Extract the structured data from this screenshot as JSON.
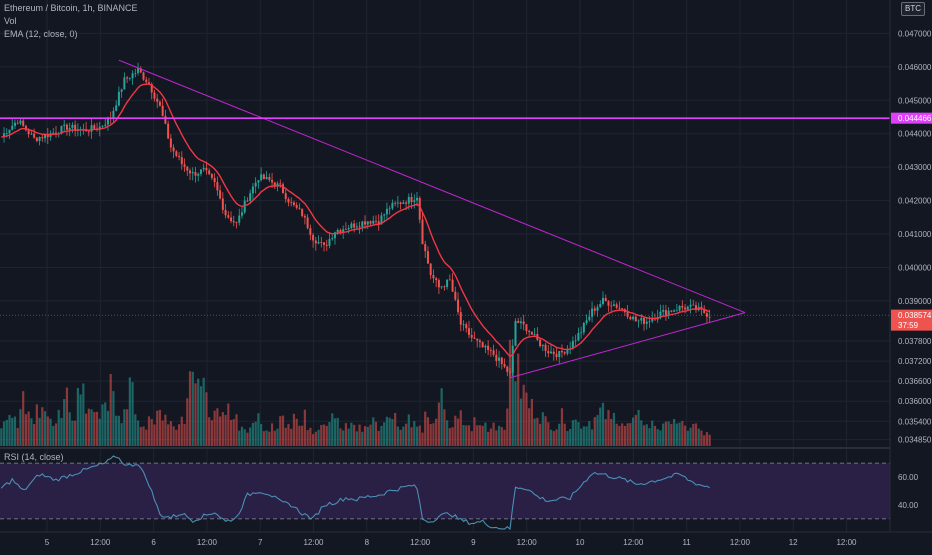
{
  "legend": {
    "symbol": "Ethereum / Bitcoin, 1h, BINANCE",
    "volume": "Vol",
    "ema": "EMA (12, close, 0)",
    "rsi": "RSI (14, close)"
  },
  "currency_button": "BTC",
  "colors": {
    "background": "#131722",
    "up": "#26a69a",
    "down": "#ef5350",
    "ema": "#f23645",
    "trendline": "#c026d3",
    "hline": "#e040fb",
    "rsi": "#4a8fb5",
    "rsi_band": "#2a1f45"
  },
  "price_axis": {
    "labels": [
      "0.047000",
      "0.046000",
      "0.045000",
      "0.044000",
      "0.043000",
      "0.042000",
      "0.041000",
      "0.040000",
      "0.039000",
      "0.037800",
      "0.037200",
      "0.036600",
      "0.036000",
      "0.035400",
      "0.034850"
    ],
    "hline_label": "0.044466",
    "last_price_label": "0.038574",
    "countdown": "37:59"
  },
  "rsi_axis": {
    "labels": [
      "60.00",
      "40.00"
    ]
  },
  "time_axis": {
    "labels": [
      "5",
      "12:00",
      "6",
      "12:00",
      "7",
      "12:00",
      "8",
      "12:00",
      "9",
      "12:00",
      "10",
      "12:00",
      "11",
      "12:00",
      "12",
      "12:00"
    ]
  },
  "chart_data": {
    "type": "line",
    "title": "Ethereum / Bitcoin, 1h, BINANCE",
    "series": [
      {
        "name": "EMA (12, close, 0)",
        "x": [
          "5",
          "12:00",
          "6",
          "12:00",
          "7",
          "12:00",
          "8",
          "12:00",
          "9",
          "12:00",
          "10",
          "12:00",
          "11"
        ],
        "values": [
          0.0439,
          0.04415,
          0.0452,
          0.0422,
          0.04245,
          0.0417,
          0.04125,
          0.0418,
          0.0392,
          0.03745,
          0.03775,
          0.03855,
          0.03865
        ]
      }
    ],
    "price_anchors": [
      [
        0,
        0.0439
      ],
      [
        2,
        0.0441
      ],
      [
        6,
        0.0444
      ],
      [
        12,
        0.04385
      ],
      [
        18,
        0.044
      ],
      [
        24,
        0.0442
      ],
      [
        30,
        0.0441
      ],
      [
        36,
        0.0442
      ],
      [
        40,
        0.0445
      ],
      [
        45,
        0.0456
      ],
      [
        50,
        0.0459
      ],
      [
        54,
        0.0455
      ],
      [
        58,
        0.0448
      ],
      [
        62,
        0.0436
      ],
      [
        66,
        0.0431
      ],
      [
        70,
        0.0428
      ],
      [
        74,
        0.0429
      ],
      [
        78,
        0.0425
      ],
      [
        82,
        0.0416
      ],
      [
        86,
        0.0413
      ],
      [
        90,
        0.0421
      ],
      [
        94,
        0.0427
      ],
      [
        98,
        0.0426
      ],
      [
        102,
        0.0424
      ],
      [
        106,
        0.0419
      ],
      [
        110,
        0.0416
      ],
      [
        114,
        0.0409
      ],
      [
        118,
        0.0406
      ],
      [
        122,
        0.0411
      ],
      [
        126,
        0.0412
      ],
      [
        130,
        0.0413
      ],
      [
        134,
        0.0414
      ],
      [
        138,
        0.0414
      ],
      [
        142,
        0.0418
      ],
      [
        146,
        0.04195
      ],
      [
        150,
        0.04205
      ],
      [
        152,
        0.04215
      ],
      [
        154,
        0.0408
      ],
      [
        157,
        0.0398
      ],
      [
        160,
        0.0394
      ],
      [
        164,
        0.0396
      ],
      [
        168,
        0.0383
      ],
      [
        172,
        0.0379
      ],
      [
        176,
        0.0376
      ],
      [
        180,
        0.0374
      ],
      [
        184,
        0.037
      ],
      [
        186,
        0.0368
      ],
      [
        188,
        0.0384
      ],
      [
        192,
        0.0382
      ],
      [
        196,
        0.0378
      ],
      [
        200,
        0.0375
      ],
      [
        204,
        0.0374
      ],
      [
        208,
        0.03765
      ],
      [
        212,
        0.0381
      ],
      [
        216,
        0.0387
      ],
      [
        220,
        0.039
      ],
      [
        224,
        0.0389
      ],
      [
        228,
        0.0387
      ],
      [
        232,
        0.0384
      ],
      [
        236,
        0.0384
      ],
      [
        240,
        0.0386
      ],
      [
        244,
        0.0387
      ],
      [
        248,
        0.0388
      ],
      [
        252,
        0.0388
      ],
      [
        256,
        0.0387
      ],
      [
        259,
        0.03857
      ]
    ],
    "volume_level": [
      0.22,
      0.25,
      0.32,
      0.2,
      0.45,
      0.3,
      0.25,
      0.4,
      0.35,
      0.28,
      0.3,
      0.22,
      0.35,
      0.5,
      0.3,
      0.25,
      0.55,
      0.8,
      0.4,
      0.3,
      0.28,
      0.35,
      0.45,
      0.6,
      0.35,
      0.3,
      0.4,
      0.55,
      0.3,
      0.25,
      0.2,
      0.3,
      0.25,
      0.35,
      0.3,
      0.2,
      0.25,
      0.22,
      0.3,
      0.45,
      0.95,
      0.7,
      0.55,
      0.45,
      0.35,
      0.3,
      0.25,
      0.3,
      0.35,
      0.3,
      0.2,
      0.18,
      0.15,
      0.22,
      0.3,
      0.2,
      0.18,
      0.25,
      0.2,
      0.3,
      0.18,
      0.22,
      0.35,
      0.25,
      0.4,
      0.2,
      0.15,
      0.18,
      0.22,
      0.2,
      0.3,
      0.25,
      0.18,
      0.2,
      0.22,
      0.15,
      0.18,
      0.2,
      0.25,
      0.22,
      0.18,
      0.3,
      0.25,
      0.35,
      0.22,
      0.2,
      0.35,
      0.25,
      0.2,
      0.18,
      0.3,
      0.2,
      0.35,
      0.5,
      0.3,
      0.2,
      0.25,
      0.3,
      0.22,
      0.18,
      0.25,
      0.2,
      0.22,
      0.18,
      0.25,
      0.2,
      0.22,
      0.3,
      1.0,
      0.75,
      0.55,
      0.5,
      0.4,
      0.35,
      0.3,
      0.25,
      0.22,
      0.2,
      0.25,
      0.3,
      0.2,
      0.25,
      0.3,
      0.2,
      0.25,
      0.22,
      0.28,
      0.35,
      0.3,
      0.25,
      0.3,
      0.25,
      0.2,
      0.22,
      0.25,
      0.3,
      0.25,
      0.2,
      0.22,
      0.18,
      0.25,
      0.2,
      0.3,
      0.25,
      0.2,
      0.18,
      0.2,
      0.22,
      0.15,
      0.12,
      0.1
    ],
    "rsi_anchors": [
      [
        0,
        52
      ],
      [
        4,
        58
      ],
      [
        8,
        50
      ],
      [
        14,
        62
      ],
      [
        20,
        58
      ],
      [
        26,
        62
      ],
      [
        32,
        66
      ],
      [
        38,
        70
      ],
      [
        42,
        75
      ],
      [
        46,
        68
      ],
      [
        50,
        70
      ],
      [
        54,
        55
      ],
      [
        58,
        33
      ],
      [
        62,
        31
      ],
      [
        66,
        34
      ],
      [
        70,
        29
      ],
      [
        74,
        32
      ],
      [
        78,
        35
      ],
      [
        82,
        28
      ],
      [
        86,
        31
      ],
      [
        90,
        47
      ],
      [
        94,
        50
      ],
      [
        98,
        48
      ],
      [
        102,
        42
      ],
      [
        106,
        40
      ],
      [
        110,
        34
      ],
      [
        114,
        30
      ],
      [
        118,
        40
      ],
      [
        122,
        42
      ],
      [
        126,
        45
      ],
      [
        130,
        44
      ],
      [
        134,
        46
      ],
      [
        138,
        47
      ],
      [
        142,
        50
      ],
      [
        146,
        52
      ],
      [
        150,
        54
      ],
      [
        152,
        52
      ],
      [
        154,
        30
      ],
      [
        157,
        28
      ],
      [
        160,
        32
      ],
      [
        164,
        34
      ],
      [
        168,
        29
      ],
      [
        172,
        27
      ],
      [
        176,
        28
      ],
      [
        180,
        24
      ],
      [
        186,
        23
      ],
      [
        188,
        53
      ],
      [
        192,
        52
      ],
      [
        196,
        46
      ],
      [
        200,
        43
      ],
      [
        204,
        44
      ],
      [
        208,
        45
      ],
      [
        212,
        54
      ],
      [
        216,
        63
      ],
      [
        220,
        62
      ],
      [
        224,
        60
      ],
      [
        228,
        58
      ],
      [
        232,
        55
      ],
      [
        236,
        56
      ],
      [
        240,
        58
      ],
      [
        244,
        60
      ],
      [
        248,
        62
      ],
      [
        252,
        57
      ],
      [
        256,
        54
      ],
      [
        259,
        53
      ]
    ],
    "rsi_levels": [
      70,
      30
    ],
    "rsi_range": [
      22,
      78
    ],
    "ylim": [
      0.0346,
      0.048
    ],
    "grid": true,
    "legend_placement": "top-left"
  }
}
